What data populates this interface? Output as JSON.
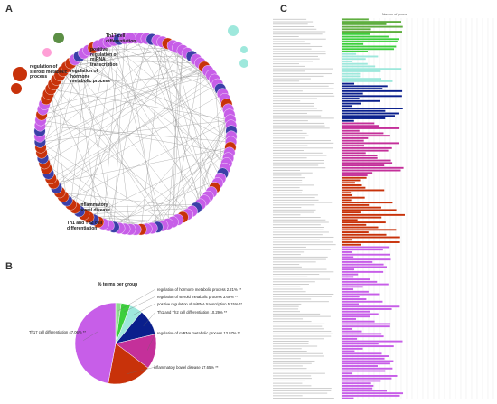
{
  "panels": {
    "a": "A",
    "b": "B",
    "c": "C"
  },
  "network_labels": [
    {
      "text": "regulation of\nsteroid metabolic\nprocess"
    },
    {
      "text": "regulation of\nhormone\nmetabolic process"
    },
    {
      "text": "positive\nregulation of\nmiRNA\ntranscription"
    },
    {
      "text": "Th17 cell\ndifferentiation"
    },
    {
      "text": "inflammatory\nbowel disease"
    },
    {
      "text": "Th1 and Th2 cell\ndifferentiation"
    }
  ],
  "chart_data": {
    "type": "pie",
    "title": "% terms per group",
    "slices": [
      {
        "label": "regulation of hormone metabolic process 2.21% **",
        "value": 2.21,
        "color": "#8fdc8f"
      },
      {
        "label": "regulation of steroid metabolic process 3.68% **",
        "value": 3.68,
        "color": "#3ccf3c"
      },
      {
        "label": "positive regulation of miRNA transcription 5.15% **",
        "value": 5.15,
        "color": "#9ee8dc"
      },
      {
        "label": "Th1 and Th2 cell differentiation 10.29% **",
        "value": 10.29,
        "color": "#0a1f8c"
      },
      {
        "label": "regulation of miRNA metabolic process 13.97% **",
        "value": 13.97,
        "color": "#c4309a"
      },
      {
        "label": "inflammatory bowel disease 17.65% **",
        "value": 17.65,
        "color": "#c8320a"
      },
      {
        "label": "Th17 cell differentiation 47.06% **",
        "value": 47.06,
        "color": "#c75ee8"
      }
    ]
  },
  "bar_panel": {
    "axis_title": "Number of genes"
  }
}
